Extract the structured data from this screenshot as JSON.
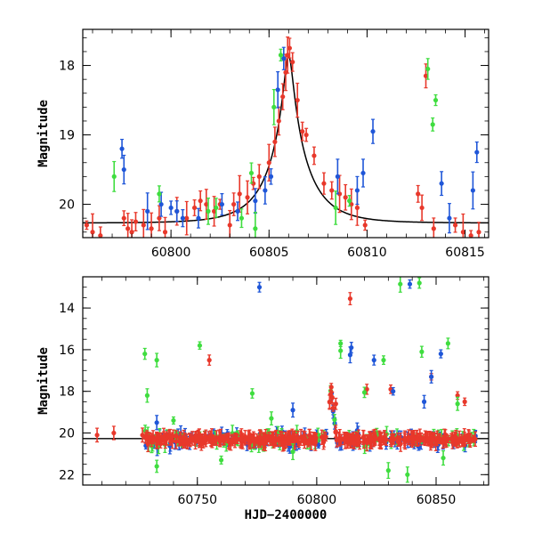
{
  "chart_data": [
    {
      "type": "scatter",
      "ylabel": "Magnitude",
      "xlabel": "",
      "xlim": [
        60795.5,
        60816.2
      ],
      "ylim": [
        20.48,
        17.48
      ],
      "y_inverted": true,
      "xticks": [
        60800,
        60805,
        60810,
        60815
      ],
      "yticks": [
        18,
        19,
        20
      ],
      "model_curve": {
        "label": "",
        "peak_x": 60806.0,
        "peak_mag": 17.75,
        "baseline_mag": 20.27,
        "amplitude_flux_ratio": 9.2,
        "tE_days": 2.0
      },
      "series": [
        {
          "color": "#e8382b",
          "points": [
            [
              60795.7,
              20.3
            ],
            [
              60796.0,
              20.4
            ],
            [
              60796.4,
              20.45
            ],
            [
              60797.6,
              20.2
            ],
            [
              60797.8,
              20.35
            ],
            [
              60798.0,
              20.4
            ],
            [
              60798.2,
              20.25
            ],
            [
              60798.6,
              20.3
            ],
            [
              60799.0,
              20.35
            ],
            [
              60799.4,
              20.2
            ],
            [
              60799.7,
              20.4
            ],
            [
              60800.3,
              20.1
            ],
            [
              60800.8,
              20.2
            ],
            [
              60801.2,
              20.05
            ],
            [
              60801.5,
              19.95
            ],
            [
              60801.8,
              20.0
            ],
            [
              60802.2,
              20.1
            ],
            [
              60802.5,
              20.0
            ],
            [
              60803.0,
              20.3
            ],
            [
              60803.2,
              20.0
            ],
            [
              60803.5,
              19.85
            ],
            [
              60803.9,
              19.9
            ],
            [
              60804.2,
              19.7
            ],
            [
              60804.5,
              19.6
            ],
            [
              60805.0,
              19.4
            ],
            [
              60805.3,
              19.1
            ],
            [
              60805.5,
              18.8
            ],
            [
              60805.7,
              18.45
            ],
            [
              60805.85,
              18.1
            ],
            [
              60805.95,
              17.85
            ],
            [
              60806.05,
              17.75
            ],
            [
              60806.2,
              17.95
            ],
            [
              60806.45,
              18.5
            ],
            [
              60806.7,
              18.95
            ],
            [
              60806.9,
              19.0
            ],
            [
              60807.3,
              19.3
            ],
            [
              60807.8,
              19.7
            ],
            [
              60808.2,
              19.8
            ],
            [
              60808.6,
              19.85
            ],
            [
              60808.9,
              19.9
            ],
            [
              60809.2,
              20.0
            ],
            [
              60809.5,
              20.05
            ],
            [
              60809.9,
              20.3
            ],
            [
              60812.6,
              19.85
            ],
            [
              60812.8,
              20.05
            ],
            [
              60813.0,
              18.15
            ],
            [
              60813.4,
              20.35
            ],
            [
              60814.5,
              20.3
            ],
            [
              60814.9,
              20.4
            ],
            [
              60815.3,
              20.45
            ],
            [
              60815.7,
              20.4
            ]
          ]
        },
        {
          "color": "#1f56d8",
          "points": [
            [
              60797.5,
              19.2
            ],
            [
              60797.6,
              19.5
            ],
            [
              60798.8,
              20.1
            ],
            [
              60799.5,
              20.0
            ],
            [
              60800.0,
              20.05
            ],
            [
              60800.3,
              20.1
            ],
            [
              60800.6,
              20.2
            ],
            [
              60801.4,
              20.2
            ],
            [
              60802.6,
              20.0
            ],
            [
              60803.4,
              20.1
            ],
            [
              60804.3,
              19.95
            ],
            [
              60804.8,
              19.8
            ],
            [
              60805.1,
              19.6
            ],
            [
              60805.45,
              18.35
            ],
            [
              60805.75,
              17.9
            ],
            [
              60808.5,
              19.6
            ],
            [
              60809.5,
              19.8
            ],
            [
              60809.8,
              19.55
            ],
            [
              60810.3,
              18.95
            ],
            [
              60813.8,
              19.7
            ],
            [
              60814.2,
              20.2
            ],
            [
              60815.4,
              19.8
            ],
            [
              60815.6,
              19.25
            ]
          ]
        },
        {
          "color": "#3fdd3f",
          "points": [
            [
              60797.1,
              19.6
            ],
            [
              60799.4,
              19.85
            ],
            [
              60801.9,
              20.1
            ],
            [
              60802.3,
              20.05
            ],
            [
              60803.6,
              20.2
            ],
            [
              60804.1,
              19.55
            ],
            [
              60804.3,
              20.35
            ],
            [
              60805.25,
              18.6
            ],
            [
              60805.6,
              17.85
            ],
            [
              60808.4,
              20.05
            ],
            [
              60809.1,
              19.95
            ],
            [
              60813.1,
              18.05
            ],
            [
              60813.35,
              18.85
            ],
            [
              60813.5,
              18.5
            ]
          ]
        }
      ]
    },
    {
      "type": "scatter",
      "xlabel": "HJD−2400000",
      "ylabel": "Magnitude",
      "xlim": [
        60702,
        60872
      ],
      "ylim": [
        22.5,
        12.5
      ],
      "y_inverted": true,
      "xticks": [
        60750,
        60800,
        60850
      ],
      "yticks": [
        14,
        16,
        18,
        20,
        22
      ],
      "baseline_mag": 20.27,
      "band": {
        "x_start": 60728,
        "x_end": 60867,
        "center_mag": 20.3,
        "spread_mag": 0.3
      },
      "series": [
        {
          "color": "#e8382b",
          "points": [
            [
              60708,
              20.1
            ],
            [
              60715,
              20.0
            ],
            [
              60727,
              20.1
            ],
            [
              60755,
              16.5
            ],
            [
              60806.1,
              17.8
            ],
            [
              60808,
              18.6
            ],
            [
              60814,
              13.55
            ],
            [
              60821,
              17.9
            ],
            [
              60831,
              17.9
            ],
            [
              60848,
              17.3
            ],
            [
              60859,
              18.2
            ],
            [
              60862,
              18.5
            ]
          ]
        },
        {
          "color": "#1f56d8",
          "points": [
            [
              60776,
              13.0
            ],
            [
              60814.5,
              15.9
            ],
            [
              60814,
              16.25
            ],
            [
              60824,
              16.5
            ],
            [
              60832,
              18.0
            ],
            [
              60839,
              12.85
            ],
            [
              60845,
              18.5
            ],
            [
              60848,
              17.3
            ],
            [
              60852,
              16.2
            ],
            [
              60733,
              19.5
            ],
            [
              60790,
              18.9
            ]
          ]
        },
        {
          "color": "#3fdd3f",
          "points": [
            [
              60728,
              16.2
            ],
            [
              60733,
              16.5
            ],
            [
              60751,
              15.8
            ],
            [
              60729,
              18.2
            ],
            [
              60740,
              19.4
            ],
            [
              60733,
              21.6
            ],
            [
              60760,
              21.3
            ],
            [
              60810,
              15.7
            ],
            [
              60810,
              16.05
            ],
            [
              60820,
              18.05
            ],
            [
              60828,
              16.5
            ],
            [
              60835,
              12.85
            ],
            [
              60843,
              12.8
            ],
            [
              60844,
              16.1
            ],
            [
              60855,
              15.7
            ],
            [
              60859,
              18.6
            ],
            [
              60790,
              20.9
            ],
            [
              60830,
              21.8
            ],
            [
              60838,
              22.0
            ],
            [
              60853,
              21.2
            ],
            [
              60773,
              18.1
            ],
            [
              60781,
              19.3
            ]
          ]
        }
      ]
    }
  ]
}
